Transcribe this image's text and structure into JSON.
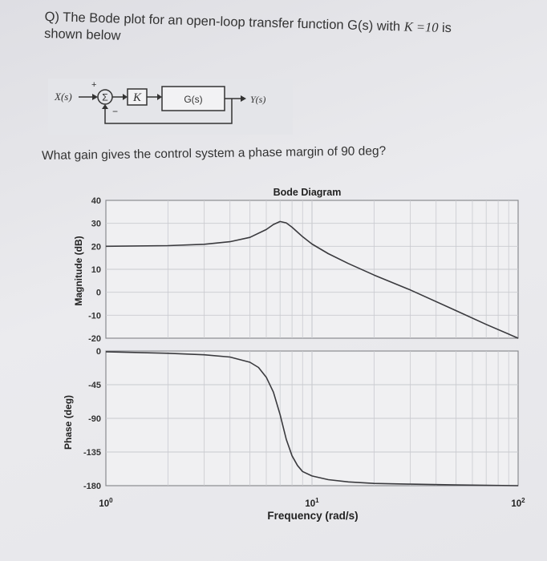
{
  "question": {
    "line1": "Q) The Bode plot for an open-loop transfer function G(s) with",
    "k_expr": "K =10",
    "line1_end": " is",
    "line2": "shown below",
    "prompt": "What gain gives the control system a phase margin of 90 deg?"
  },
  "block_diagram": {
    "input_label": "X(s)",
    "plus_sign": "+",
    "minus_sign": "−",
    "summing_symbol": "Σ",
    "gain_label": "K",
    "plant_label": "G(s)",
    "output_label": "Y(s)"
  },
  "colors": {
    "line": "#3a3a3e",
    "grid": "#c9cacf",
    "axes_bg": "#f0f0f2"
  },
  "chart_data": {
    "type": "line",
    "title": "Bode Diagram",
    "xlabel": "Frequency (rad/s)",
    "x_scale": "log",
    "xlim": [
      1,
      100
    ],
    "x_ticks": [
      {
        "value": 1,
        "base": "10",
        "exp": "0"
      },
      {
        "value": 10,
        "base": "10",
        "exp": "1"
      },
      {
        "value": 100,
        "base": "10",
        "exp": "2"
      }
    ],
    "magnitude": {
      "ylabel": "Magnitude (dB)",
      "ylim": [
        -20,
        40
      ],
      "y_ticks": [
        "40",
        "30",
        "20",
        "10",
        "0",
        "-10",
        "-20"
      ],
      "series": [
        {
          "x": [
            1,
            2,
            3,
            4,
            5,
            6,
            6.5,
            7,
            7.5,
            8,
            8.5,
            9,
            10,
            12,
            15,
            20,
            30,
            50,
            70,
            100
          ],
          "y": [
            20,
            20.3,
            20.9,
            22,
            23.9,
            27.3,
            29.5,
            30.8,
            30.2,
            28.3,
            26.2,
            24.2,
            21,
            16.8,
            12.5,
            7.5,
            1,
            -8,
            -14,
            -20
          ]
        }
      ]
    },
    "phase": {
      "ylabel": "Phase (deg)",
      "ylim": [
        -180,
        0
      ],
      "y_ticks": [
        "0",
        "-45",
        "-90",
        "-135",
        "-180"
      ],
      "series": [
        {
          "x": [
            1,
            2,
            3,
            4,
            5,
            5.5,
            6,
            6.5,
            7,
            7.5,
            8,
            8.5,
            9,
            10,
            12,
            15,
            20,
            30,
            50,
            100
          ],
          "y": [
            -1,
            -3,
            -5,
            -8,
            -15,
            -22,
            -35,
            -55,
            -85,
            -118,
            -140,
            -153,
            -161,
            -167,
            -172,
            -175,
            -177,
            -178,
            -179,
            -180
          ]
        }
      ]
    }
  }
}
